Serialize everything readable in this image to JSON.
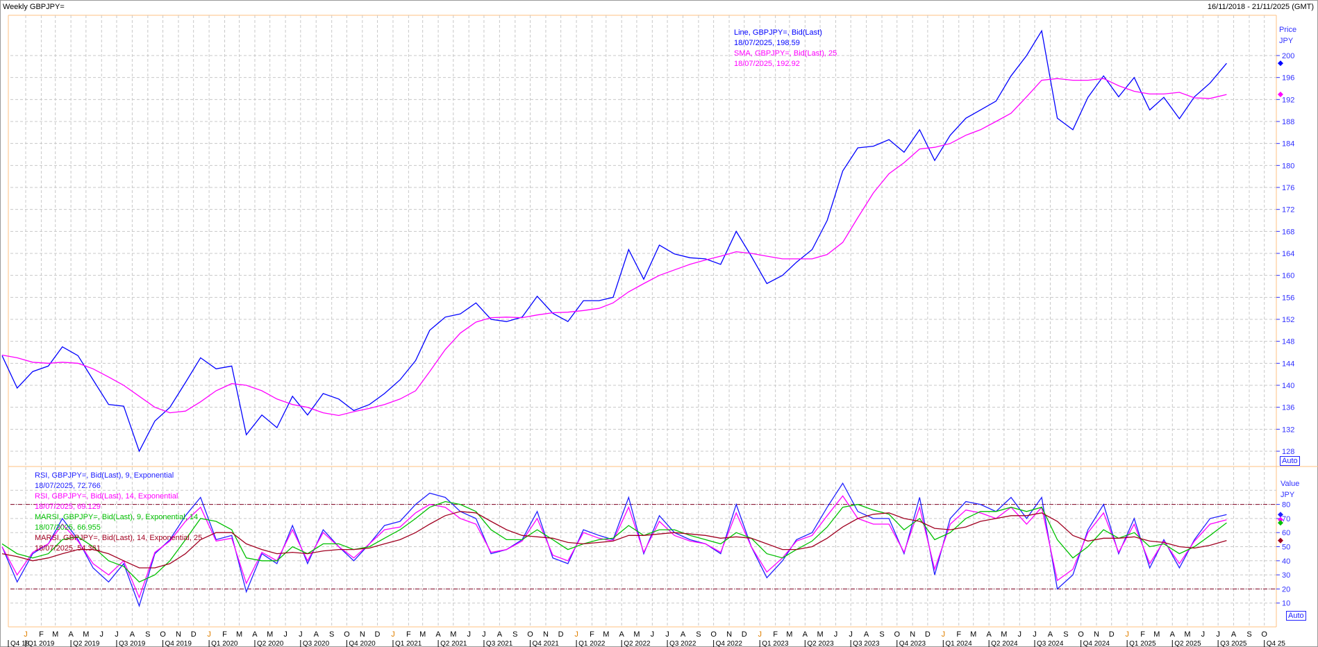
{
  "header": {
    "title": "Weekly GBPJPY=",
    "range": "16/11/2018 - 21/11/2025 (GMT)"
  },
  "price_legend": [
    {
      "text": "Line, GBPJPY=, Bid(Last)",
      "color": "#0000ff"
    },
    {
      "text": "18/07/2025, 198.59",
      "color": "#0000ff"
    },
    {
      "text": "SMA, GBPJPY=, Bid(Last),  25",
      "color": "#ff00ff"
    },
    {
      "text": "18/07/2025, 192.92",
      "color": "#ff00ff"
    }
  ],
  "rsi_legend": [
    {
      "text": "RSI, GBPJPY=, Bid(Last),  9, Exponential",
      "color": "#2020ff"
    },
    {
      "text": "18/07/2025, 72.766",
      "color": "#2020ff"
    },
    {
      "text": "RSI, GBPJPY=, Bid(Last),  14, Exponential",
      "color": "#ff00ff"
    },
    {
      "text": "18/07/2025, 69.129",
      "color": "#ff00ff"
    },
    {
      "text": "MARSI, GBPJPY=, Bid(Last),  9, Exponential, 14",
      "color": "#00c000"
    },
    {
      "text": "18/07/2025, 66.955",
      "color": "#00c000"
    },
    {
      "text": "MARSI, GBPJPY=, Bid(Last),  14, Exponential, 25",
      "color": "#a00020"
    },
    {
      "text": "18/07/2025, 54.361",
      "color": "#a00020"
    }
  ],
  "auto_label": "Auto",
  "chart_data": [
    {
      "type": "line",
      "axis_title": "Price",
      "axis_unit": "JPY",
      "yticks": [
        128,
        132,
        136,
        140,
        144,
        148,
        152,
        156,
        160,
        164,
        168,
        172,
        176,
        180,
        184,
        188,
        192,
        196,
        200
      ],
      "grid": true,
      "dates": [
        "2018-11",
        "2018-12",
        "2019-01",
        "2019-02",
        "2019-03",
        "2019-04",
        "2019-05",
        "2019-06",
        "2019-07",
        "2019-08",
        "2019-09",
        "2019-10",
        "2019-11",
        "2019-12",
        "2020-01",
        "2020-02",
        "2020-03",
        "2020-04",
        "2020-05",
        "2020-06",
        "2020-07",
        "2020-08",
        "2020-09",
        "2020-10",
        "2020-11",
        "2020-12",
        "2021-01",
        "2021-02",
        "2021-03",
        "2021-04",
        "2021-05",
        "2021-06",
        "2021-07",
        "2021-08",
        "2021-09",
        "2021-10",
        "2021-11",
        "2021-12",
        "2022-01",
        "2022-02",
        "2022-03",
        "2022-04",
        "2022-05",
        "2022-06",
        "2022-07",
        "2022-08",
        "2022-09",
        "2022-10",
        "2022-11",
        "2022-12",
        "2023-01",
        "2023-02",
        "2023-03",
        "2023-04",
        "2023-05",
        "2023-06",
        "2023-07",
        "2023-08",
        "2023-09",
        "2023-10",
        "2023-11",
        "2023-12",
        "2024-01",
        "2024-02",
        "2024-03",
        "2024-04",
        "2024-05",
        "2024-06",
        "2024-07",
        "2024-08",
        "2024-09",
        "2024-10",
        "2024-11",
        "2024-12",
        "2025-01",
        "2025-02",
        "2025-03",
        "2025-04",
        "2025-05",
        "2025-06",
        "2025-07-18"
      ],
      "series": [
        {
          "name": "Line, GBPJPY=, Bid(Last)",
          "color": "#0000ff",
          "values": [
            145.4,
            139.5,
            142.5,
            143.5,
            147.0,
            145.4,
            141.0,
            136.5,
            136.2,
            128.0,
            133.5,
            136.0,
            140.5,
            145.0,
            143.0,
            143.5,
            131.0,
            134.6,
            132.3,
            138.0,
            134.6,
            138.5,
            137.5,
            135.4,
            136.5,
            138.5,
            141.0,
            144.5,
            150.0,
            152.4,
            153.0,
            155.0,
            152.0,
            151.6,
            152.4,
            156.2,
            153.1,
            151.6,
            155.4,
            155.4,
            156.0,
            164.7,
            159.3,
            165.5,
            163.9,
            163.2,
            163.0,
            162.0,
            168.0,
            163.5,
            158.5,
            160.0,
            162.4,
            164.7,
            170.0,
            179.0,
            183.2,
            183.5,
            184.7,
            182.4,
            186.5,
            180.9,
            185.5,
            188.6,
            190.1,
            191.7,
            196.3,
            200.0,
            204.5,
            188.6,
            186.5,
            192.4,
            196.3,
            192.5,
            196.0,
            190.1,
            192.4,
            188.5,
            192.5,
            195.0,
            198.59
          ]
        },
        {
          "name": "SMA, GBPJPY=, Bid(Last),  25",
          "color": "#ff00ff",
          "values": [
            145.5,
            145.0,
            144.2,
            144.0,
            144.2,
            144.0,
            143.0,
            141.5,
            140.0,
            138.0,
            136.0,
            135.0,
            135.3,
            137.0,
            139.0,
            140.3,
            140.0,
            139.0,
            137.5,
            136.5,
            136.0,
            135.0,
            134.5,
            135.2,
            135.8,
            136.5,
            137.5,
            139.0,
            142.5,
            146.5,
            149.5,
            151.5,
            152.3,
            152.4,
            152.3,
            152.8,
            153.2,
            153.3,
            153.6,
            154.0,
            155.0,
            157.0,
            158.5,
            160.0,
            161.0,
            162.0,
            162.8,
            163.5,
            164.3,
            164.0,
            163.5,
            163.0,
            163.0,
            163.0,
            163.8,
            166.0,
            170.5,
            175.0,
            178.5,
            180.5,
            183.0,
            183.3,
            184.0,
            185.5,
            186.5,
            188.0,
            189.5,
            192.5,
            195.5,
            195.8,
            195.5,
            195.5,
            195.8,
            194.5,
            193.5,
            193.0,
            193.0,
            193.3,
            192.3,
            192.2,
            192.92
          ]
        }
      ]
    },
    {
      "type": "line",
      "axis_title": "Value",
      "axis_unit": "JPY",
      "yticks": [
        10,
        20,
        30,
        40,
        50,
        60,
        70,
        80
      ],
      "reference_lines": [
        20,
        80
      ],
      "grid": true,
      "series": [
        {
          "name": "RSI, GBPJPY=, Bid(Last),  9, Exponential",
          "color": "#2020ff",
          "values": [
            50,
            25,
            45,
            52,
            70,
            55,
            35,
            25,
            38,
            8,
            45,
            55,
            72,
            85,
            55,
            58,
            18,
            45,
            38,
            65,
            38,
            62,
            50,
            40,
            52,
            65,
            68,
            80,
            88,
            85,
            75,
            70,
            45,
            48,
            55,
            75,
            42,
            38,
            62,
            58,
            55,
            85,
            45,
            72,
            60,
            55,
            52,
            45,
            80,
            50,
            28,
            40,
            55,
            60,
            78,
            95,
            75,
            70,
            70,
            45,
            85,
            30,
            70,
            82,
            80,
            75,
            85,
            70,
            85,
            20,
            30,
            62,
            80,
            45,
            70,
            35,
            55,
            35,
            55,
            70,
            72.766
          ]
        },
        {
          "name": "RSI, GBPJPY=, Bid(Last),  14, Exponential",
          "color": "#ff00ff",
          "values": [
            50,
            30,
            46,
            52,
            66,
            54,
            38,
            30,
            40,
            14,
            46,
            54,
            68,
            78,
            54,
            56,
            24,
            46,
            40,
            62,
            40,
            60,
            50,
            42,
            52,
            62,
            64,
            74,
            80,
            78,
            70,
            66,
            46,
            48,
            54,
            70,
            44,
            40,
            60,
            56,
            54,
            78,
            46,
            68,
            58,
            54,
            52,
            46,
            74,
            50,
            32,
            42,
            54,
            58,
            72,
            86,
            70,
            66,
            66,
            46,
            78,
            34,
            66,
            76,
            74,
            70,
            78,
            66,
            78,
            26,
            34,
            60,
            74,
            46,
            66,
            38,
            54,
            38,
            54,
            66,
            69.129
          ]
        },
        {
          "name": "MARSI, GBPJPY=, Bid(Last),  9, Exponential, 14",
          "color": "#00c000",
          "values": [
            52,
            45,
            42,
            45,
            55,
            57,
            50,
            40,
            36,
            25,
            30,
            40,
            55,
            70,
            68,
            62,
            42,
            40,
            40,
            50,
            45,
            52,
            52,
            48,
            50,
            56,
            62,
            70,
            78,
            82,
            80,
            75,
            62,
            55,
            55,
            62,
            55,
            48,
            52,
            55,
            56,
            65,
            58,
            62,
            62,
            58,
            55,
            52,
            60,
            56,
            45,
            42,
            48,
            54,
            64,
            78,
            80,
            76,
            73,
            62,
            70,
            55,
            60,
            70,
            75,
            75,
            78,
            75,
            78,
            55,
            42,
            50,
            62,
            56,
            60,
            50,
            52,
            45,
            50,
            58,
            66.955
          ]
        },
        {
          "name": "MARSI, GBPJPY=, Bid(Last),  14, Exponential, 25",
          "color": "#a00020",
          "values": [
            45,
            43,
            40,
            42,
            45,
            48,
            48,
            45,
            40,
            35,
            35,
            38,
            45,
            55,
            60,
            60,
            52,
            48,
            45,
            46,
            45,
            47,
            48,
            48,
            49,
            52,
            55,
            60,
            66,
            72,
            75,
            74,
            68,
            62,
            58,
            57,
            56,
            53,
            52,
            53,
            54,
            58,
            58,
            59,
            60,
            59,
            58,
            56,
            57,
            56,
            52,
            48,
            48,
            50,
            56,
            64,
            70,
            73,
            74,
            70,
            68,
            63,
            62,
            64,
            68,
            70,
            72,
            72,
            74,
            68,
            58,
            54,
            56,
            56,
            57,
            54,
            53,
            50,
            49,
            51,
            54.361
          ]
        }
      ]
    }
  ],
  "x_axis": {
    "month_start": "2018-12",
    "months": [
      "D",
      "J",
      "F",
      "M",
      "A",
      "M",
      "J",
      "J",
      "A",
      "S",
      "O",
      "N",
      "D",
      "J",
      "F",
      "M",
      "A",
      "M",
      "J",
      "J",
      "A",
      "S",
      "O",
      "N",
      "D",
      "J",
      "F",
      "M",
      "A",
      "M",
      "J",
      "J",
      "A",
      "S",
      "O",
      "N",
      "D",
      "J",
      "F",
      "M",
      "A",
      "M",
      "J",
      "J",
      "A",
      "S",
      "O",
      "N",
      "D",
      "J",
      "F",
      "M",
      "A",
      "M",
      "J",
      "J",
      "A",
      "S",
      "O",
      "N",
      "D",
      "J",
      "F",
      "M",
      "A",
      "M",
      "J",
      "J",
      "A",
      "S",
      "O",
      "N",
      "D",
      "J",
      "F",
      "M",
      "A",
      "M",
      "J",
      "J",
      "A",
      "S",
      "O",
      "N"
    ],
    "quarters": [
      "Q4 18",
      "Q1 2019",
      "Q2 2019",
      "Q3 2019",
      "Q4 2019",
      "Q1 2020",
      "Q2 2020",
      "Q3 2020",
      "Q4 2020",
      "Q1 2021",
      "Q2 2021",
      "Q3 2021",
      "Q4 2021",
      "Q1 2022",
      "Q2 2022",
      "Q3 2022",
      "Q4 2022",
      "Q1 2023",
      "Q2 2023",
      "Q3 2023",
      "Q4 2023",
      "Q1 2024",
      "Q2 2024",
      "Q3 2024",
      "Q4 2024",
      "Q1 2025",
      "Q2 2025",
      "Q3 2025",
      "Q4 25"
    ],
    "january_color": "#e08000"
  }
}
